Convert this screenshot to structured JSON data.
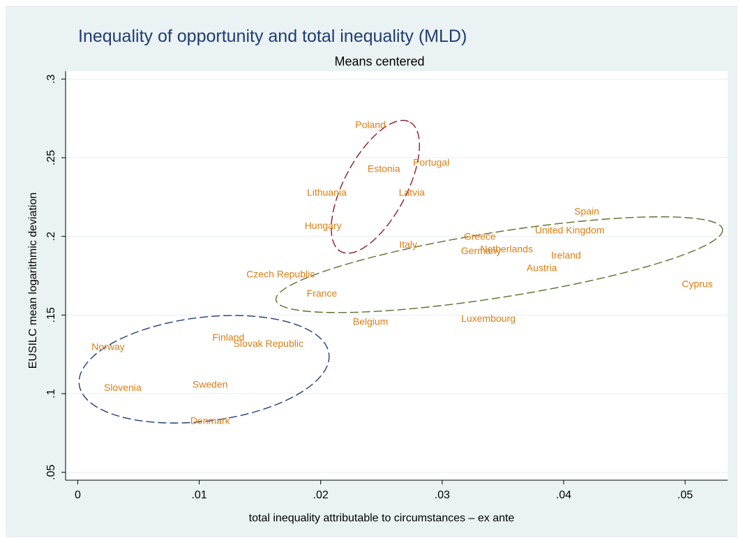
{
  "chart_data": {
    "type": "scatter",
    "title": "Inequality of opportunity and total inequality (MLD)",
    "subtitle": "Means centered",
    "xlabel": "total inequality attributable to circumstances – ex ante",
    "ylabel": "EUSILC mean logarithmic deviation",
    "xlim": [
      -0.001,
      0.0535
    ],
    "ylim": [
      0.045,
      0.305
    ],
    "x_ticks": [
      0,
      0.01,
      0.02,
      0.03,
      0.04,
      0.05
    ],
    "x_tick_labels": [
      "0",
      ".01",
      ".02",
      ".03",
      ".04",
      ".05"
    ],
    "y_ticks": [
      0.05,
      0.1,
      0.15,
      0.2,
      0.25,
      0.3
    ],
    "y_tick_labels": [
      ".05",
      ".1",
      ".15",
      ".2",
      ".25",
      ".3"
    ],
    "grid": "horizontal",
    "colors": {
      "background": "#eaf2f3",
      "plot": "#ffffff",
      "title": "#1f3d73",
      "labels": "#e07d10",
      "grid": "#e6eef0",
      "cluster_red": "#8a1a2a",
      "cluster_green": "#5a6e2a",
      "cluster_blue": "#1f3d73"
    },
    "points": [
      {
        "label": "Poland",
        "x": 0.0241,
        "y": 0.271
      },
      {
        "label": "Estonia",
        "x": 0.0252,
        "y": 0.243
      },
      {
        "label": "Portugal",
        "x": 0.0291,
        "y": 0.247
      },
      {
        "label": "Lithuania",
        "x": 0.0205,
        "y": 0.228
      },
      {
        "label": "Latvia",
        "x": 0.0275,
        "y": 0.228
      },
      {
        "label": "Hungary",
        "x": 0.0202,
        "y": 0.207
      },
      {
        "label": "Italy",
        "x": 0.0272,
        "y": 0.195
      },
      {
        "label": "Greece",
        "x": 0.0331,
        "y": 0.2
      },
      {
        "label": "Germany",
        "x": 0.0332,
        "y": 0.191
      },
      {
        "label": "Netherlands",
        "x": 0.0353,
        "y": 0.192
      },
      {
        "label": "United Kingdom",
        "x": 0.0405,
        "y": 0.204
      },
      {
        "label": "Spain",
        "x": 0.0419,
        "y": 0.216
      },
      {
        "label": "Ireland",
        "x": 0.0402,
        "y": 0.188
      },
      {
        "label": "Austria",
        "x": 0.0382,
        "y": 0.18
      },
      {
        "label": "Cyprus",
        "x": 0.051,
        "y": 0.17
      },
      {
        "label": "Czech Republic",
        "x": 0.0167,
        "y": 0.176
      },
      {
        "label": "France",
        "x": 0.0201,
        "y": 0.164
      },
      {
        "label": "Belgium",
        "x": 0.0241,
        "y": 0.146
      },
      {
        "label": "Luxembourg",
        "x": 0.0338,
        "y": 0.148
      },
      {
        "label": "Norway",
        "x": 0.0025,
        "y": 0.13
      },
      {
        "label": "Finland",
        "x": 0.0124,
        "y": 0.136
      },
      {
        "label": "Slovak Republic",
        "x": 0.0157,
        "y": 0.132
      },
      {
        "label": "Slovenia",
        "x": 0.0037,
        "y": 0.104
      },
      {
        "label": "Sweden",
        "x": 0.0109,
        "y": 0.106
      },
      {
        "label": "Denmark",
        "x": 0.0109,
        "y": 0.083
      }
    ],
    "clusters": [
      {
        "color": "cluster_red",
        "x": [
          0.0194,
          0.0296
        ],
        "y": [
          0.181,
          0.282
        ],
        "rotate": -62
      },
      {
        "color": "cluster_green",
        "x": [
          0.0159,
          0.0535
        ],
        "y": [
          0.139,
          0.225
        ],
        "rotate": -9
      },
      {
        "color": "cluster_blue",
        "x": [
          -0.0004,
          0.0212
        ],
        "y": [
          0.073,
          0.158
        ],
        "rotate": -7
      }
    ]
  }
}
